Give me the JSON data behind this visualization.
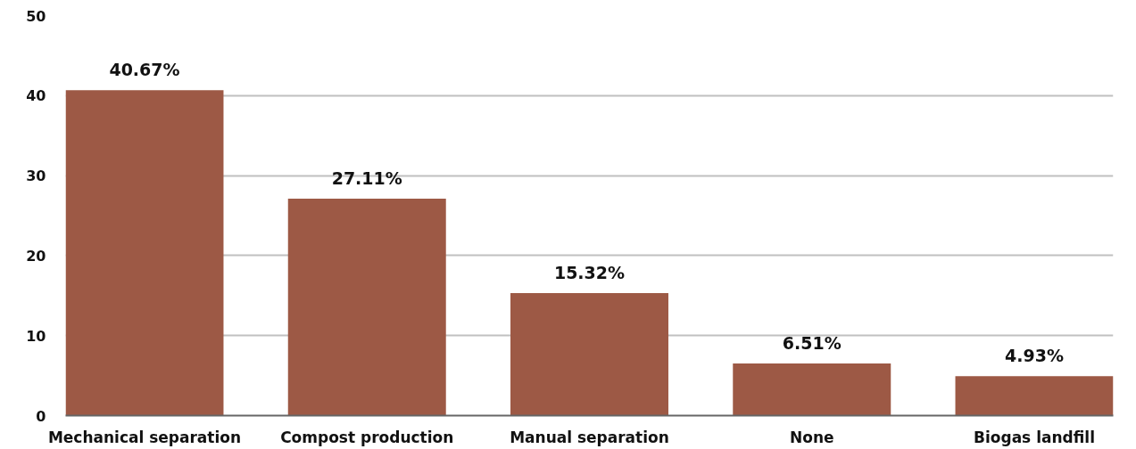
{
  "chart_data": {
    "type": "bar",
    "categories": [
      "Mechanical separation",
      "Compost production",
      "Manual separation",
      "None",
      "Biogas landfill"
    ],
    "values": [
      40.67,
      27.11,
      15.32,
      6.51,
      4.93
    ],
    "value_labels": [
      "40.67%",
      "27.11%",
      "15.32%",
      "6.51%",
      "4.93%"
    ],
    "color": "#9d5945",
    "ylim": [
      0,
      50
    ],
    "yticks": [
      0,
      10,
      20,
      30,
      40,
      50
    ],
    "grid": "y"
  }
}
